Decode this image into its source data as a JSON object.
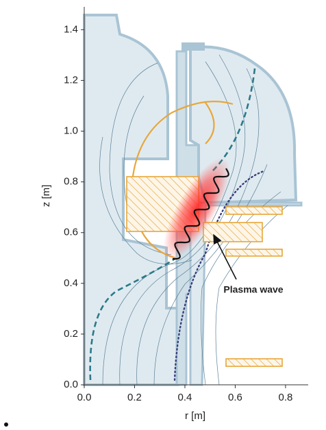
{
  "chart_data": {
    "type": "diagram",
    "xlabel": "r [m]",
    "ylabel": "z [m]",
    "xlim": [
      0,
      0.89
    ],
    "ylim": [
      0,
      1.49
    ],
    "xticks": [
      {
        "value": 0,
        "label": "0.0"
      },
      0.2,
      0.4,
      0.6,
      0.8
    ],
    "yticks": [
      {
        "value": 0,
        "label": "0.0"
      },
      0.2,
      0.4,
      0.6,
      0.8,
      {
        "value": 1,
        "label": "1.0"
      },
      1.2,
      1.4
    ],
    "annotation": "Plasma wave"
  }
}
